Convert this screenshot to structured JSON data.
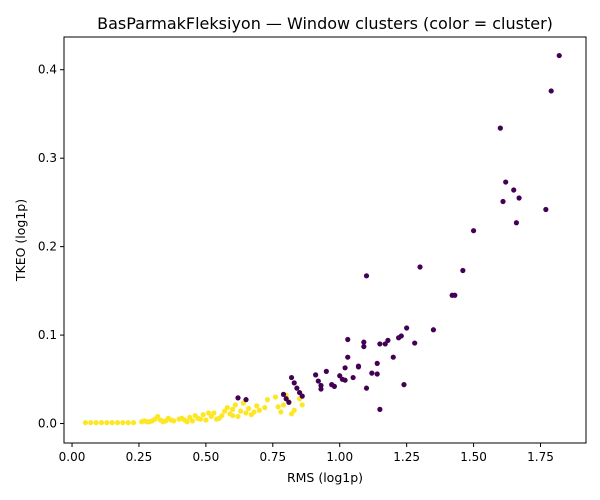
{
  "chart_data": {
    "type": "scatter",
    "title": "BasParmakFleksiyon — Window clusters (color = cluster)",
    "xlabel": "RMS (log1p)",
    "ylabel": "TKEO (log1p)",
    "xlim": [
      -0.03,
      1.92
    ],
    "ylim": [
      -0.022,
      0.437
    ],
    "xticks": [
      0.0,
      0.25,
      0.5,
      0.75,
      1.0,
      1.25,
      1.5,
      1.75
    ],
    "xtick_labels": [
      "0.00",
      "0.25",
      "0.50",
      "0.75",
      "1.00",
      "1.25",
      "1.50",
      "1.75"
    ],
    "yticks": [
      0.0,
      0.1,
      0.2,
      0.3,
      0.4
    ],
    "ytick_labels": [
      "0.0",
      "0.1",
      "0.2",
      "0.3",
      "0.4"
    ],
    "grid": false,
    "legend": "none",
    "series": [
      {
        "color": "#fde725",
        "points": [
          [
            0.05,
            0.001
          ],
          [
            0.07,
            0.001
          ],
          [
            0.09,
            0.001
          ],
          [
            0.11,
            0.001
          ],
          [
            0.13,
            0.001
          ],
          [
            0.15,
            0.001
          ],
          [
            0.17,
            0.001
          ],
          [
            0.19,
            0.001
          ],
          [
            0.21,
            0.001
          ],
          [
            0.23,
            0.001
          ],
          [
            0.26,
            0.002
          ],
          [
            0.28,
            0.002
          ],
          [
            0.3,
            0.003
          ],
          [
            0.31,
            0.005
          ],
          [
            0.33,
            0.004
          ],
          [
            0.34,
            0.002
          ],
          [
            0.36,
            0.006
          ],
          [
            0.38,
            0.003
          ],
          [
            0.4,
            0.005
          ],
          [
            0.42,
            0.004
          ],
          [
            0.44,
            0.007
          ],
          [
            0.45,
            0.003
          ],
          [
            0.46,
            0.009
          ],
          [
            0.48,
            0.005
          ],
          [
            0.49,
            0.01
          ],
          [
            0.5,
            0.004
          ],
          [
            0.52,
            0.008
          ],
          [
            0.53,
            0.012
          ],
          [
            0.55,
            0.006
          ],
          [
            0.56,
            0.009
          ],
          [
            0.57,
            0.014
          ],
          [
            0.58,
            0.018
          ],
          [
            0.59,
            0.011
          ],
          [
            0.6,
            0.016
          ],
          [
            0.61,
            0.021
          ],
          [
            0.62,
            0.008
          ],
          [
            0.63,
            0.014
          ],
          [
            0.64,
            0.023
          ],
          [
            0.66,
            0.017
          ],
          [
            0.67,
            0.01
          ],
          [
            0.68,
            0.013
          ],
          [
            0.69,
            0.02
          ],
          [
            0.7,
            0.015
          ],
          [
            0.73,
            0.027
          ],
          [
            0.76,
            0.03
          ],
          [
            0.78,
            0.013
          ],
          [
            0.79,
            0.021
          ],
          [
            0.8,
            0.032
          ],
          [
            0.81,
            0.025
          ],
          [
            0.82,
            0.011
          ],
          [
            0.83,
            0.015
          ],
          [
            0.85,
            0.028
          ],
          [
            0.86,
            0.021
          ],
          [
            0.27,
            0.003
          ],
          [
            0.29,
            0.002
          ],
          [
            0.32,
            0.008
          ],
          [
            0.35,
            0.003
          ],
          [
            0.37,
            0.004
          ],
          [
            0.41,
            0.006
          ],
          [
            0.43,
            0.002
          ],
          [
            0.47,
            0.006
          ],
          [
            0.51,
            0.012
          ],
          [
            0.54,
            0.005
          ],
          [
            0.6,
            0.009
          ],
          [
            0.65,
            0.012
          ],
          [
            0.72,
            0.018
          ],
          [
            0.77,
            0.019
          ]
        ]
      },
      {
        "color": "#440154",
        "points": [
          [
            0.62,
            0.029
          ],
          [
            0.65,
            0.027
          ],
          [
            0.79,
            0.033
          ],
          [
            0.8,
            0.028
          ],
          [
            0.81,
            0.024
          ],
          [
            0.82,
            0.052
          ],
          [
            0.83,
            0.046
          ],
          [
            0.84,
            0.04
          ],
          [
            0.85,
            0.035
          ],
          [
            0.86,
            0.031
          ],
          [
            0.91,
            0.055
          ],
          [
            0.92,
            0.048
          ],
          [
            0.93,
            0.043
          ],
          [
            0.93,
            0.039
          ],
          [
            0.95,
            0.059
          ],
          [
            0.97,
            0.044
          ],
          [
            0.98,
            0.042
          ],
          [
            1.0,
            0.054
          ],
          [
            1.01,
            0.05
          ],
          [
            1.02,
            0.049
          ],
          [
            1.02,
            0.063
          ],
          [
            1.03,
            0.075
          ],
          [
            1.03,
            0.095
          ],
          [
            1.05,
            0.052
          ],
          [
            1.07,
            0.065
          ],
          [
            1.07,
            0.064
          ],
          [
            1.09,
            0.092
          ],
          [
            1.09,
            0.087
          ],
          [
            1.1,
            0.167
          ],
          [
            1.1,
            0.04
          ],
          [
            1.12,
            0.057
          ],
          [
            1.14,
            0.056
          ],
          [
            1.14,
            0.068
          ],
          [
            1.15,
            0.09
          ],
          [
            1.15,
            0.016
          ],
          [
            1.17,
            0.09
          ],
          [
            1.18,
            0.094
          ],
          [
            1.2,
            0.075
          ],
          [
            1.22,
            0.097
          ],
          [
            1.23,
            0.099
          ],
          [
            1.24,
            0.044
          ],
          [
            1.25,
            0.108
          ],
          [
            1.28,
            0.091
          ],
          [
            1.3,
            0.177
          ],
          [
            1.35,
            0.106
          ],
          [
            1.42,
            0.145
          ],
          [
            1.43,
            0.145
          ],
          [
            1.46,
            0.173
          ],
          [
            1.5,
            0.218
          ],
          [
            1.6,
            0.334
          ],
          [
            1.61,
            0.251
          ],
          [
            1.62,
            0.273
          ],
          [
            1.65,
            0.264
          ],
          [
            1.66,
            0.227
          ],
          [
            1.67,
            0.255
          ],
          [
            1.77,
            0.242
          ],
          [
            1.79,
            0.376
          ],
          [
            1.82,
            0.416
          ]
        ]
      }
    ]
  }
}
